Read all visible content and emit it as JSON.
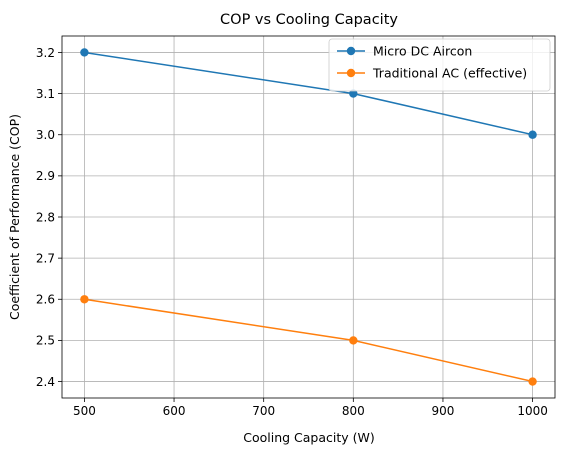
{
  "chart_data": {
    "type": "line",
    "title": "COP vs Cooling Capacity",
    "xlabel": "Cooling Capacity (W)",
    "ylabel": "Coefficient of Performance (COP)",
    "xlim": [
      475,
      1025
    ],
    "ylim": [
      2.36,
      3.24
    ],
    "xticks": [
      500,
      600,
      700,
      800,
      900,
      1000
    ],
    "yticks": [
      2.4,
      2.5,
      2.6,
      2.7,
      2.8,
      2.9,
      3.0,
      3.1,
      3.2
    ],
    "xtick_labels": [
      "500",
      "600",
      "700",
      "800",
      "900",
      "1000"
    ],
    "ytick_labels": [
      "2.4",
      "2.5",
      "2.6",
      "2.7",
      "2.8",
      "2.9",
      "3.0",
      "3.1",
      "3.2"
    ],
    "grid": true,
    "legend_position": "top-right",
    "series": [
      {
        "name": "Micro DC Aircon",
        "color": "#1f77b4",
        "marker": "circle",
        "x": [
          500,
          800,
          1000
        ],
        "y": [
          3.2,
          3.1,
          3.0
        ]
      },
      {
        "name": "Traditional AC (effective)",
        "color": "#ff7f0e",
        "marker": "circle",
        "x": [
          500,
          800,
          1000
        ],
        "y": [
          2.6,
          2.5,
          2.4
        ]
      }
    ]
  }
}
